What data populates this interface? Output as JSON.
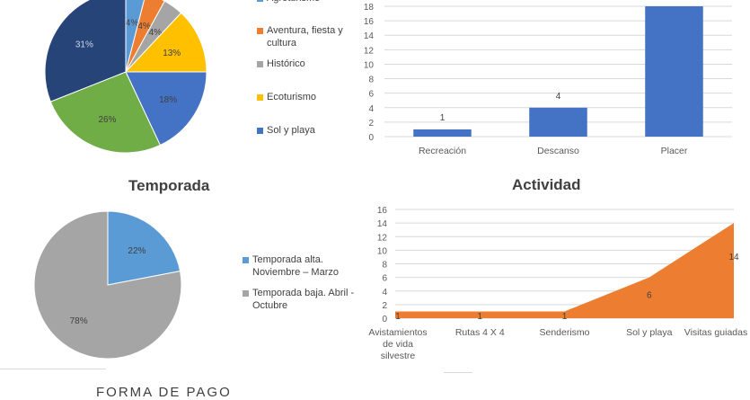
{
  "colors": {
    "blue": "#4472C4",
    "orange": "#ED7D31",
    "gray": "#A5A5A5",
    "yellow": "#FFC000",
    "light_blue": "#5B9BD5",
    "green": "#70AD47",
    "dark_blue": "#264478",
    "bar_blue": "#4472C4",
    "area_orange": "#ED7D31"
  },
  "chart_data": [
    {
      "type": "pie",
      "title": "",
      "slices": [
        {
          "label": "Agroturismo",
          "value": 4,
          "value_label": "4%",
          "color": "#5B9BD5"
        },
        {
          "label": "Aventura, fiesta y cultura",
          "value": 4,
          "value_label": "4%",
          "color": "#ED7D31"
        },
        {
          "label": "Histórico",
          "value": 4,
          "value_label": "4%",
          "color": "#A5A5A5"
        },
        {
          "label": "Ecoturismo",
          "value": 13,
          "value_label": "13%",
          "color": "#FFC000"
        },
        {
          "label": "Sol y playa",
          "value": 18,
          "value_label": "18%",
          "color": "#4472C4"
        },
        {
          "label": "",
          "value": 26,
          "value_label": "26%",
          "color": "#70AD47"
        },
        {
          "label": "",
          "value": 31,
          "value_label": "31%",
          "color": "#264478"
        }
      ],
      "legend": [
        {
          "label": "Agroturismo",
          "color": "#5B9BD5"
        },
        {
          "label": "Aventura, fiesta y cultura",
          "color": "#ED7D31"
        },
        {
          "label": "Histórico",
          "color": "#A5A5A5"
        },
        {
          "label": "Ecoturismo",
          "color": "#FFC000"
        },
        {
          "label": "Sol y playa",
          "color": "#4472C4"
        }
      ],
      "legend_position": "right"
    },
    {
      "type": "bar",
      "title": "",
      "categories": [
        "Recreación",
        "Descanso",
        "Placer"
      ],
      "values": [
        1,
        4,
        18
      ],
      "data_labels": [
        "1",
        "4",
        ""
      ],
      "ylim": [
        0,
        18
      ],
      "yticks": [
        "0",
        "2",
        "4",
        "6",
        "8",
        "10",
        "12",
        "14",
        "16",
        "18"
      ],
      "grid": true
    },
    {
      "type": "pie",
      "title": "Temporada",
      "slices": [
        {
          "label": "Temporada alta. Noviembre – Marzo",
          "value": 22,
          "value_label": "22%",
          "color": "#5B9BD5"
        },
        {
          "label": "Temporada baja. Abril - Octubre",
          "value": 78,
          "value_label": "78%",
          "color": "#A5A5A5"
        }
      ],
      "legend": [
        {
          "label": "Temporada alta. Noviembre – Marzo",
          "color": "#5B9BD5"
        },
        {
          "label": "Temporada baja. Abril - Octubre",
          "color": "#A5A5A5"
        }
      ],
      "legend_position": "right"
    },
    {
      "type": "area",
      "title": "Actividad",
      "categories": [
        "Avistamientos de vida silvestre",
        "Rutas 4 X 4",
        "Senderismo",
        "Sol y playa",
        "Visitas guiadas"
      ],
      "category_lines": [
        [
          "Avistamientos",
          "de vida",
          "silvestre"
        ],
        [
          "Rutas 4 X 4"
        ],
        [
          "Senderismo"
        ],
        [
          "Sol y playa"
        ],
        [
          "Visitas guiadas"
        ]
      ],
      "values": [
        1,
        1,
        1,
        6,
        14
      ],
      "data_labels": [
        "1",
        "1",
        "1",
        "6",
        "14"
      ],
      "ylim": [
        0,
        16
      ],
      "yticks": [
        "0",
        "2",
        "4",
        "6",
        "8",
        "10",
        "12",
        "14",
        "16"
      ],
      "grid": true
    }
  ],
  "section": {
    "forma_de_pago": "FORMA DE PAGO"
  }
}
